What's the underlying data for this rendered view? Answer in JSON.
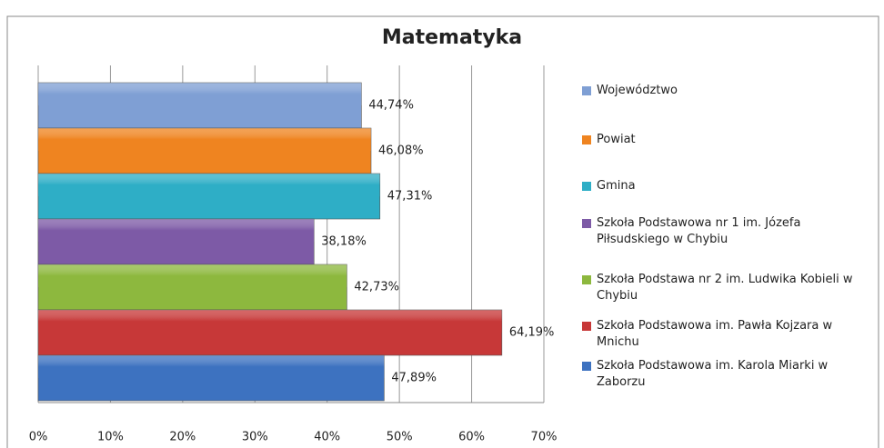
{
  "chart_data": {
    "type": "bar",
    "orientation": "horizontal",
    "title": "Matematyka",
    "series": [
      {
        "name": "Województwo",
        "color": "#7f9fd4",
        "values": [
          44.74
        ],
        "value_labels": [
          "44,74%"
        ]
      },
      {
        "name": "Powiat",
        "color": "#ef8420",
        "values": [
          46.08
        ],
        "value_labels": [
          "46,08%"
        ]
      },
      {
        "name": "Gmina",
        "color": "#2eaec6",
        "values": [
          47.31
        ],
        "value_labels": [
          "47,31%"
        ]
      },
      {
        "name": "Szkoła Podstawowa nr 1 im. Józefa Piłsudskiego w Chybiu",
        "color": "#7d5aa6",
        "values": [
          38.18
        ],
        "value_labels": [
          "38,18%"
        ]
      },
      {
        "name": "Szkoła Podstawa nr 2 im. Ludwika Kobieli w Chybiu",
        "color": "#8db83e",
        "values": [
          42.73
        ],
        "value_labels": [
          "42,73%"
        ]
      },
      {
        "name": "Szkoła Podstawowa im. Pawła Kojzara w Mnichu",
        "color": "#c73838",
        "values": [
          64.19
        ],
        "value_labels": [
          "64,19%"
        ]
      },
      {
        "name": "Szkoła Podstawowa im. Karola Miarki w Zaborzu",
        "color": "#3d72c0",
        "values": [
          47.89
        ],
        "value_labels": [
          "47,89%"
        ]
      }
    ],
    "xlim": [
      0,
      70
    ],
    "xticks": [
      {
        "value": 0,
        "label": "0%"
      },
      {
        "value": 10,
        "label": "10%"
      },
      {
        "value": 20,
        "label": "20%"
      },
      {
        "value": 30,
        "label": "30%"
      },
      {
        "value": 40,
        "label": "40%"
      },
      {
        "value": 50,
        "label": "50%"
      },
      {
        "value": 60,
        "label": "60%"
      },
      {
        "value": 70,
        "label": "70%"
      }
    ],
    "grid": true,
    "legend": "right"
  }
}
